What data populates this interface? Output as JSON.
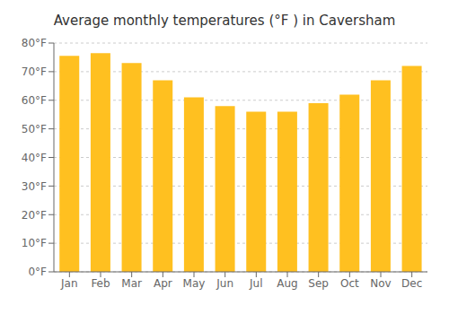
{
  "chart_data": {
    "type": "bar",
    "title": "Average monthly temperatures (°F ) in Caversham",
    "categories": [
      "Jan",
      "Feb",
      "Mar",
      "Apr",
      "May",
      "Jun",
      "Jul",
      "Aug",
      "Sep",
      "Oct",
      "Nov",
      "Dec"
    ],
    "values": [
      75.5,
      76.5,
      73.0,
      67.0,
      61.0,
      58.0,
      56.0,
      56.0,
      59.0,
      62.0,
      67.0,
      72.0
    ],
    "color": "#FFC020",
    "ylim": [
      0,
      80
    ],
    "yticks": [
      {
        "value": 0,
        "label": "0°F"
      },
      {
        "value": 10,
        "label": "10°F"
      },
      {
        "value": 20,
        "label": "20°F"
      },
      {
        "value": 30,
        "label": "30°F"
      },
      {
        "value": 40,
        "label": "40°F"
      },
      {
        "value": 50,
        "label": "50°F"
      },
      {
        "value": 60,
        "label": "60°F"
      },
      {
        "value": 70,
        "label": "70°F"
      },
      {
        "value": 80,
        "label": "80°F"
      }
    ],
    "grid": true
  }
}
